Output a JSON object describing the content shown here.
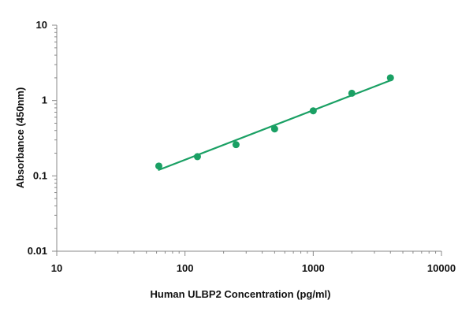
{
  "chart_data": {
    "type": "scatter",
    "title": "",
    "xlabel": "Human ULBP2 Concentration (pg/ml)",
    "ylabel": "Absorbance (450nm)",
    "xscale": "log",
    "yscale": "log",
    "xlim": [
      10,
      10000
    ],
    "ylim": [
      0.01,
      10
    ],
    "x_ticks": [
      {
        "value": 10,
        "label": "10"
      },
      {
        "value": 100,
        "label": "100"
      },
      {
        "value": 1000,
        "label": "1000"
      },
      {
        "value": 10000,
        "label": "10000"
      }
    ],
    "y_ticks": [
      {
        "value": 0.01,
        "label": "0.01"
      },
      {
        "value": 0.1,
        "label": "0.1"
      },
      {
        "value": 1,
        "label": "1"
      },
      {
        "value": 10,
        "label": "10"
      }
    ],
    "grid": false,
    "legend": "none",
    "series": [
      {
        "color": "#1aa064",
        "points": [
          {
            "x": 62.5,
            "y": 0.135
          },
          {
            "x": 125,
            "y": 0.18
          },
          {
            "x": 250,
            "y": 0.26
          },
          {
            "x": 500,
            "y": 0.42
          },
          {
            "x": 1000,
            "y": 0.73
          },
          {
            "x": 2000,
            "y": 1.25
          },
          {
            "x": 4000,
            "y": 2.0
          }
        ],
        "fit_line": [
          {
            "x": 62.5,
            "y": 0.12
          },
          {
            "x": 4000,
            "y": 1.85
          }
        ]
      }
    ]
  }
}
